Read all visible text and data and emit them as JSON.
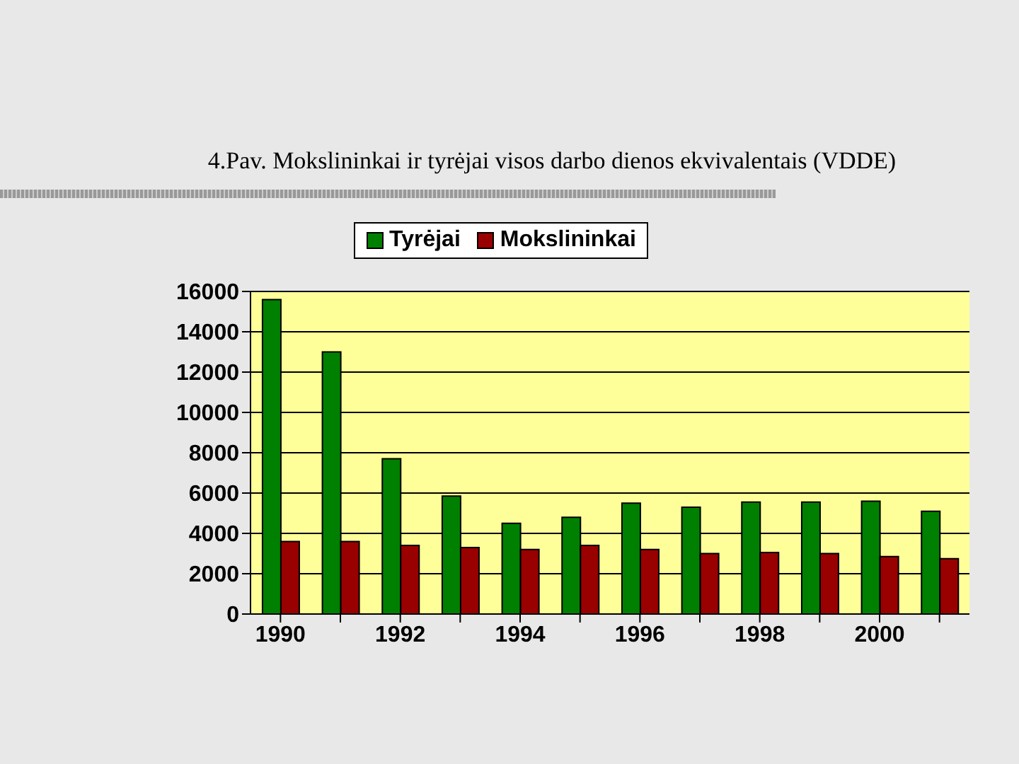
{
  "chart_data": {
    "type": "bar",
    "title": "4.Pav. Mokslininkai ir tyrėjai visos darbo dienos ekvivalentais (VDDE)",
    "categories": [
      "1990",
      null,
      "1992",
      null,
      "1994",
      null,
      "1996",
      null,
      "1998",
      null,
      "2000",
      null
    ],
    "series": [
      {
        "name": "Tyrėjai",
        "color": "#008000",
        "values": [
          15600,
          13000,
          7700,
          5850,
          4500,
          4800,
          5500,
          5300,
          5550,
          5550,
          5600,
          5100
        ]
      },
      {
        "name": "Mokslininkai",
        "color": "#990000",
        "values": [
          3600,
          3600,
          3400,
          3300,
          3200,
          3400,
          3200,
          3000,
          3050,
          3000,
          2850,
          2750
        ]
      }
    ],
    "ylim": [
      0,
      16000
    ],
    "yticks": [
      0,
      2000,
      4000,
      6000,
      8000,
      10000,
      12000,
      14000,
      16000
    ],
    "grid": "y",
    "legend": "top"
  }
}
